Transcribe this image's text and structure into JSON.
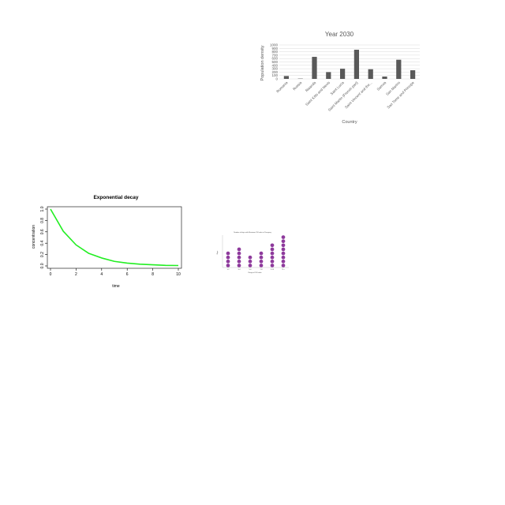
{
  "colors": {
    "bar": "#595959",
    "grid": "#d9d9d9",
    "line": "#22ee22",
    "dot": "#8e3a9c"
  },
  "chart_data": [
    {
      "type": "bar",
      "title": "Year 2030",
      "xlabel": "Country",
      "ylabel": "Population density",
      "ylim": [
        0,
        1000
      ],
      "yticks": [
        "0",
        "100",
        "200",
        "300",
        "400",
        "500",
        "600",
        "700",
        "800",
        "900",
        "1000"
      ],
      "grid": true,
      "categories": [
        "Romania",
        "Russia",
        "Rwanda",
        "Saint Kitts and Nevis",
        "Saint Lucia",
        "Saint Martin (French part)",
        "Saint Vincent and the...",
        "Samoa",
        "San Marino",
        "Sao Tome and Principe"
      ],
      "values": [
        85,
        9,
        650,
        200,
        300,
        860,
        285,
        70,
        565,
        255
      ]
    },
    {
      "type": "line",
      "title": "Exponential decay",
      "xlabel": "time",
      "ylabel": "concentration",
      "xlim": [
        0,
        10
      ],
      "ylim": [
        0,
        1
      ],
      "xticks": [
        "0",
        "2",
        "4",
        "6",
        "8",
        "10"
      ],
      "yticks": [
        "0.0",
        "0.2",
        "0.4",
        "0.6",
        "0.8",
        "1.0"
      ],
      "x": [
        0,
        1,
        2,
        3,
        4,
        5,
        6,
        7,
        8,
        9,
        10
      ],
      "y": [
        1.0,
        0.61,
        0.37,
        0.22,
        0.14,
        0.08,
        0.05,
        0.03,
        0.02,
        0.01,
        0.007
      ]
    },
    {
      "type": "scatter",
      "title": "Number of days with Maximum UV Index in Paraguay",
      "xlabel": "Range of UV Index",
      "ylabel": "Days",
      "ylim": [
        0,
        8
      ],
      "grid": false,
      "categories": [
        "1-2",
        "3-4",
        "5-6",
        "7-8",
        "9-10",
        "11+"
      ],
      "values": [
        4,
        5,
        3,
        4,
        6,
        8
      ]
    }
  ]
}
